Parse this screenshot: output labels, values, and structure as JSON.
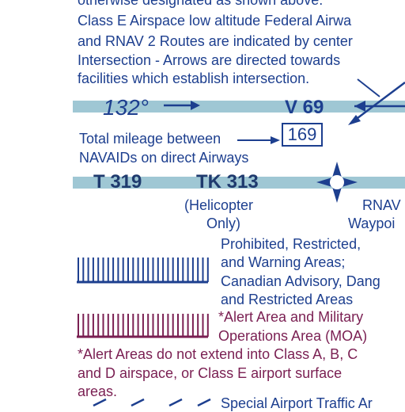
{
  "intro": {
    "line0": "otherwise designated as shown above.",
    "line1": "Class E Airspace low altitude Federal Airwa",
    "line2": "and RNAV 2 Routes are indicated by center",
    "line3": "Intersection - Arrows are directed towards",
    "line4": "facilities which establish intersection."
  },
  "airway1": {
    "course": "132°",
    "name": "V 69",
    "mileage": "169",
    "mileage_caption_line1": "Total mileage between",
    "mileage_caption_line2": "NAVAIDs on direct Airways"
  },
  "airway2": {
    "route1": "T 319",
    "route2": "TK 313",
    "route2_note_line1": "(Helicopter",
    "route2_note_line2": "Only)",
    "waypoint_label_line1": "RNAV",
    "waypoint_label_line2": "Waypoi"
  },
  "special_use": {
    "line1": "Prohibited, Restricted,",
    "line2": "and Warning Areas;",
    "line3": "Canadian Advisory, Dang",
    "line4": "and Restricted Areas"
  },
  "alert_moa": {
    "line1": "*Alert Area and Military",
    "line2": "Operations Area (MOA)"
  },
  "alert_note": {
    "line1": "*Alert Areas do not extend into Class A, B, C",
    "line2": "and D airspace, or Class E airport surface",
    "line3": "areas."
  },
  "sata": {
    "line1": "Special Airport Traffic Ar"
  },
  "colors": {
    "navy": "#1d3f8f",
    "band": "#9fc7d4",
    "maroon": "#7a1f52"
  }
}
